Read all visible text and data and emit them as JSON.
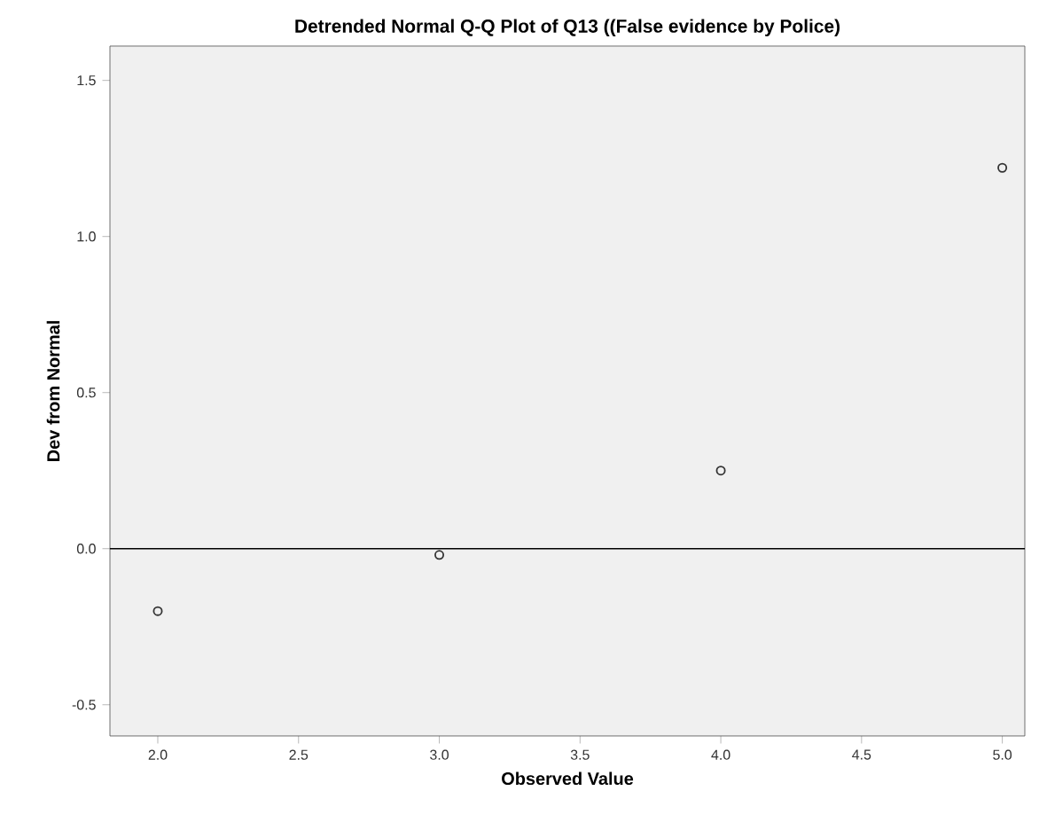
{
  "chart_data": {
    "type": "scatter",
    "title": "Detrended Normal Q-Q Plot of Q13 ((False evidence by Police)",
    "xlabel": "Observed Value",
    "ylabel": "Dev from Normal",
    "x": [
      2,
      3,
      4,
      5
    ],
    "values": [
      -0.2,
      -0.02,
      0.25,
      1.22
    ],
    "color": "#333333",
    "marker": "circle",
    "xlim": [
      1.83,
      5.08
    ],
    "ylim": [
      -0.6,
      1.61
    ],
    "xticks": [
      {
        "value": 2,
        "label": "2.0"
      },
      2.5,
      {
        "value": 3,
        "label": "3.0"
      },
      3.5,
      {
        "value": 4,
        "label": "4.0"
      },
      4.5,
      {
        "value": 5,
        "label": "5.0"
      }
    ],
    "yticks": [
      {
        "value": -0.5,
        "label": "-0.5"
      },
      {
        "value": 0,
        "label": "0.0"
      },
      0.5,
      {
        "value": 1,
        "label": "1.0"
      },
      1.5
    ],
    "ref_lines": [
      {
        "axis": "y",
        "value": 0,
        "color": "#000000"
      }
    ],
    "grid": false
  }
}
